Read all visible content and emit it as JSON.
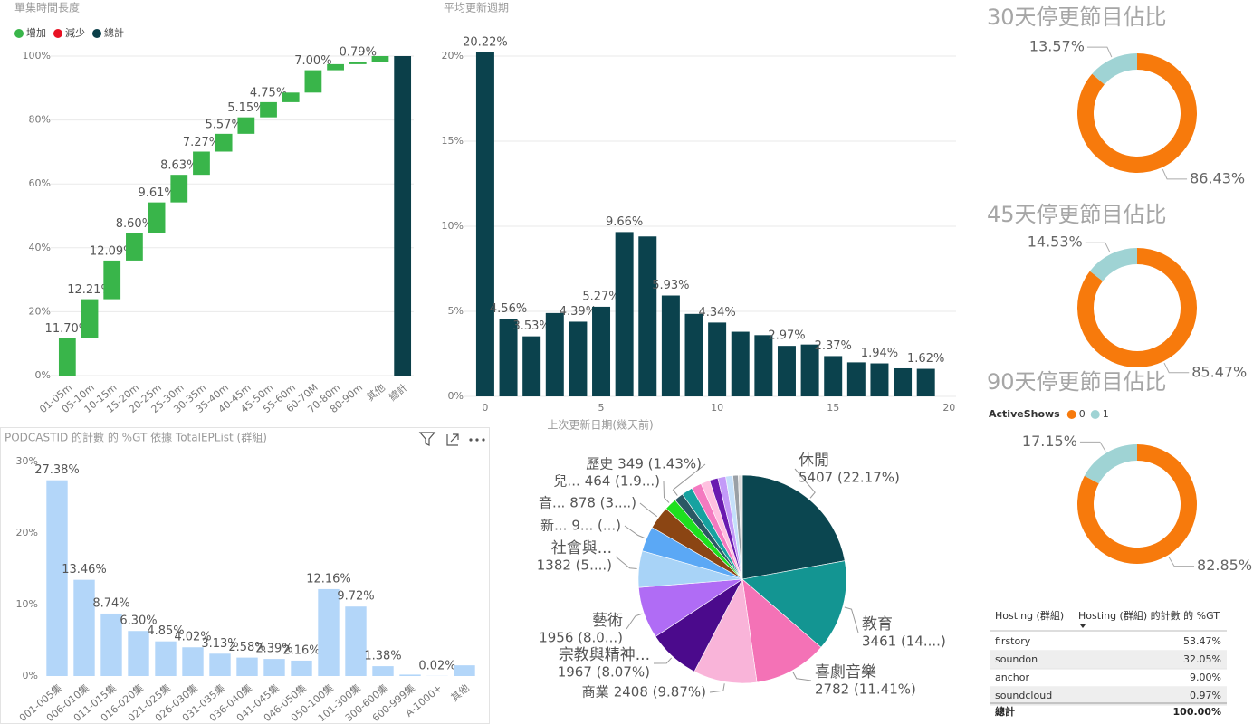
{
  "chart_data": [
    {
      "type": "waterfall",
      "title": "單集時間長度",
      "categories": [
        "01-05m",
        "05-10m",
        "10-15m",
        "15-20m",
        "20-25m",
        "25-30m",
        "30-35m",
        "35-40m",
        "40-45m",
        "45-50m",
        "55-60m",
        "60-70M",
        "70-80m",
        "80-90m",
        "其他",
        "總計"
      ],
      "series": [
        {
          "name": "增加",
          "color": "#39b54a",
          "values": [
            11.7,
            12.21,
            12.09,
            8.6,
            9.61,
            8.63,
            7.27,
            5.57,
            5.15,
            4.75,
            3.0,
            7.0,
            1.9,
            0.79,
            1.73,
            null
          ],
          "value_labels": [
            "11.70%",
            "12.21%",
            "12.09%",
            "8.60%",
            "9.61%",
            "8.63%",
            "7.27%",
            "5.57%",
            "5.15%",
            "4.75%",
            null,
            "7.00%",
            null,
            "0.79%",
            null,
            null
          ]
        },
        {
          "name": "減少",
          "color": "#e81123",
          "decrease": true,
          "values": [
            null,
            null,
            null,
            null,
            null,
            null,
            null,
            null,
            null,
            null,
            null,
            null,
            null,
            null,
            null,
            null
          ]
        },
        {
          "name": "總計",
          "color": "#0b3f49",
          "total": true,
          "values": [
            null,
            null,
            null,
            null,
            null,
            null,
            null,
            null,
            null,
            null,
            null,
            null,
            null,
            null,
            null,
            100
          ]
        }
      ],
      "ylim": [
        0,
        100
      ],
      "yticks": [
        {
          "value": 0,
          "label": "0%"
        },
        {
          "value": 20,
          "label": "20%"
        },
        {
          "value": 40,
          "label": "40%"
        },
        {
          "value": 60,
          "label": "60%"
        },
        {
          "value": 80,
          "label": "80%"
        },
        {
          "value": 100,
          "label": "100%"
        }
      ],
      "grid": true,
      "legend": "top-left"
    },
    {
      "type": "bar",
      "title": "平均更新週期",
      "x_label": "上次更新日期(幾天前)",
      "x": [
        0,
        1,
        2,
        3,
        4,
        5,
        6,
        7,
        8,
        9,
        10,
        11,
        12,
        13,
        14,
        15,
        16,
        17,
        18,
        19
      ],
      "values": [
        20.22,
        4.56,
        3.53,
        4.9,
        4.39,
        5.27,
        9.66,
        9.4,
        5.93,
        4.85,
        4.34,
        3.8,
        3.6,
        2.97,
        3.05,
        2.37,
        2.0,
        1.94,
        1.65,
        1.62
      ],
      "value_labels": [
        "20.22%",
        "4.56%",
        "3.53%",
        null,
        "4.39%",
        "5.27%",
        "9.66%",
        null,
        "5.93%",
        null,
        "4.34%",
        null,
        null,
        "2.97%",
        null,
        "2.37%",
        null,
        "1.94%",
        null,
        "1.62%"
      ],
      "color": "#0b424d",
      "xlim": [
        -0.7,
        20.3
      ],
      "xticks": [
        0,
        5,
        10,
        15,
        20
      ],
      "ylim": [
        0,
        21
      ],
      "yticks": [
        {
          "value": 0,
          "label": "0%"
        },
        {
          "value": 5,
          "label": "5%"
        },
        {
          "value": 10,
          "label": "10%"
        },
        {
          "value": 15,
          "label": "15%"
        },
        {
          "value": 20,
          "label": "20%"
        }
      ],
      "grid": true
    },
    {
      "type": "donut",
      "title": "30天停更節目佔比",
      "values": [
        86.43,
        13.57
      ],
      "value_labels": [
        "86.43%",
        "13.57%"
      ],
      "colors": [
        "#f77a0c",
        "#9fd3d4"
      ]
    },
    {
      "type": "donut",
      "title": "45天停更節目佔比",
      "values": [
        85.47,
        14.53
      ],
      "value_labels": [
        "85.47%",
        "14.53%"
      ],
      "colors": [
        "#f77a0c",
        "#9fd3d4"
      ]
    },
    {
      "type": "donut",
      "title": "90天停更節目佔比",
      "values": [
        82.85,
        17.15
      ],
      "value_labels": [
        "82.85%",
        "17.15%"
      ],
      "colors": [
        "#f77a0c",
        "#9fd3d4"
      ],
      "legend": {
        "title": "ActiveShows",
        "names": [
          "0",
          "1"
        ]
      }
    },
    {
      "type": "bar",
      "title": "PODCASTID 的計數 的 %GT 依據 TotalEPList (群組)",
      "categories": [
        "001-005集",
        "006-010集",
        "011-015集",
        "016-020集",
        "021-025集",
        "026-030集",
        "031-035集",
        "036-040集",
        "041-045集",
        "046-050集",
        "050-100集",
        "101-300集",
        "300-600集",
        "600-999集",
        "A-1000+",
        "其他"
      ],
      "values": [
        27.38,
        13.46,
        8.74,
        6.3,
        4.85,
        4.02,
        3.13,
        2.58,
        2.39,
        2.16,
        12.16,
        9.72,
        1.38,
        0.2,
        0.02,
        1.5
      ],
      "value_labels": [
        "27.38%",
        "13.46%",
        "8.74%",
        "6.30%",
        "4.85%",
        "4.02%",
        "3.13%",
        "2.58%",
        "2.39%",
        "2.16%",
        "12.16%",
        "9.72%",
        "1.38%",
        null,
        "0.02%",
        null
      ],
      "color": "#b3d6f9",
      "ylim": [
        0,
        30
      ],
      "yticks": [
        {
          "value": 0,
          "label": "0%"
        },
        {
          "value": 10,
          "label": "10%"
        },
        {
          "value": 20,
          "label": "20%"
        },
        {
          "value": 30,
          "label": "30%"
        }
      ],
      "grid": false
    },
    {
      "type": "pie",
      "categories": [
        "休閒",
        "教育",
        "喜劇音樂",
        "商業",
        "宗教與精神...",
        "藝術",
        "社會與...",
        "新...",
        "音...",
        "兒...",
        "歷史",
        null,
        null,
        null,
        null,
        null,
        null,
        null,
        null
      ],
      "values": [
        5407,
        3461,
        2782,
        2408,
        1967,
        1956,
        1382,
        950,
        878,
        464,
        349,
        420,
        380,
        340,
        320,
        300,
        270,
        200,
        155
      ],
      "value_labels": [
        "5407 (22.17%)",
        "3461 (14....)",
        "2782 (11.41%)",
        "2408 (9.87%)",
        "1967 (8.07%)",
        "1956 (8.0...)",
        "1382 (5....)",
        "9... (...)",
        "878 (3....)",
        "464 (1.9...)",
        "349 (1.43%)",
        null,
        null,
        null,
        null,
        null,
        null,
        null,
        null
      ],
      "colors": [
        "#0b4650",
        "#139592",
        "#f472b6",
        "#f9b4d9",
        "#4b0a8c",
        "#b06cf5",
        "#a8d3f7",
        "#5ba8f5",
        "#8b4513",
        "#1ee01e",
        "#2b5864",
        "#17a2a0",
        "#f47ac0",
        "#ffc0e0",
        "#6a1ab0",
        "#c39af8",
        "#c5e0fa",
        "#9aa0a6",
        "#dddddd"
      ]
    }
  ],
  "table": {
    "columns": [
      "Hosting (群組)",
      "Hosting (群組) 的計數 的 %GT"
    ],
    "rows": [
      [
        "firstory",
        "53.47%"
      ],
      [
        "soundon",
        "32.05%"
      ],
      [
        "anchor",
        "9.00%"
      ],
      [
        "soundcloud",
        "0.97%"
      ]
    ],
    "total": [
      "總計",
      "100.00%"
    ]
  }
}
